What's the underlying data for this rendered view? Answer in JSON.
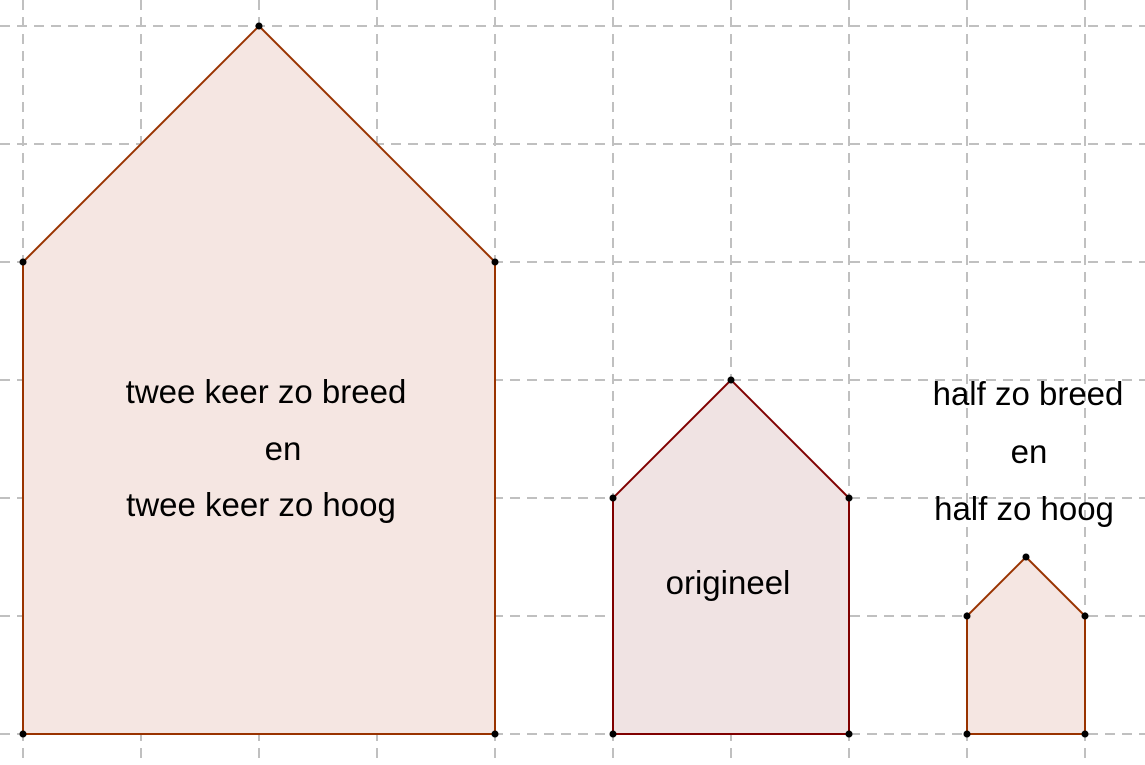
{
  "colors": {
    "background": "#ffffff",
    "grid": "#c0c0c0",
    "large_fill": "#f5e6e2",
    "large_stroke": "#993300",
    "original_fill": "#f0e3e3",
    "original_stroke": "#800000",
    "small_fill": "#f5e6e2",
    "small_stroke": "#993300",
    "vertex": "#000000"
  },
  "grid": {
    "unit": 1,
    "dashed": true
  },
  "shapes": [
    {
      "id": "large",
      "vertices": [
        [
          0,
          0
        ],
        [
          4,
          0
        ],
        [
          4,
          4
        ],
        [
          2,
          6
        ],
        [
          0,
          4
        ]
      ],
      "label_lines": [
        "twee keer zo breed",
        "en",
        "twee keer zo hoog"
      ]
    },
    {
      "id": "original",
      "vertices": [
        [
          5,
          0
        ],
        [
          7,
          0
        ],
        [
          7,
          2
        ],
        [
          6,
          3
        ],
        [
          5,
          2
        ]
      ],
      "label_lines": [
        "origineel"
      ]
    },
    {
      "id": "small",
      "vertices": [
        [
          8,
          0
        ],
        [
          9,
          0
        ],
        [
          9,
          1
        ],
        [
          8.5,
          1.5
        ],
        [
          8,
          1
        ]
      ],
      "label_lines": []
    }
  ],
  "small_caption_lines": [
    "half zo breed",
    "en",
    "half zo hoog"
  ]
}
